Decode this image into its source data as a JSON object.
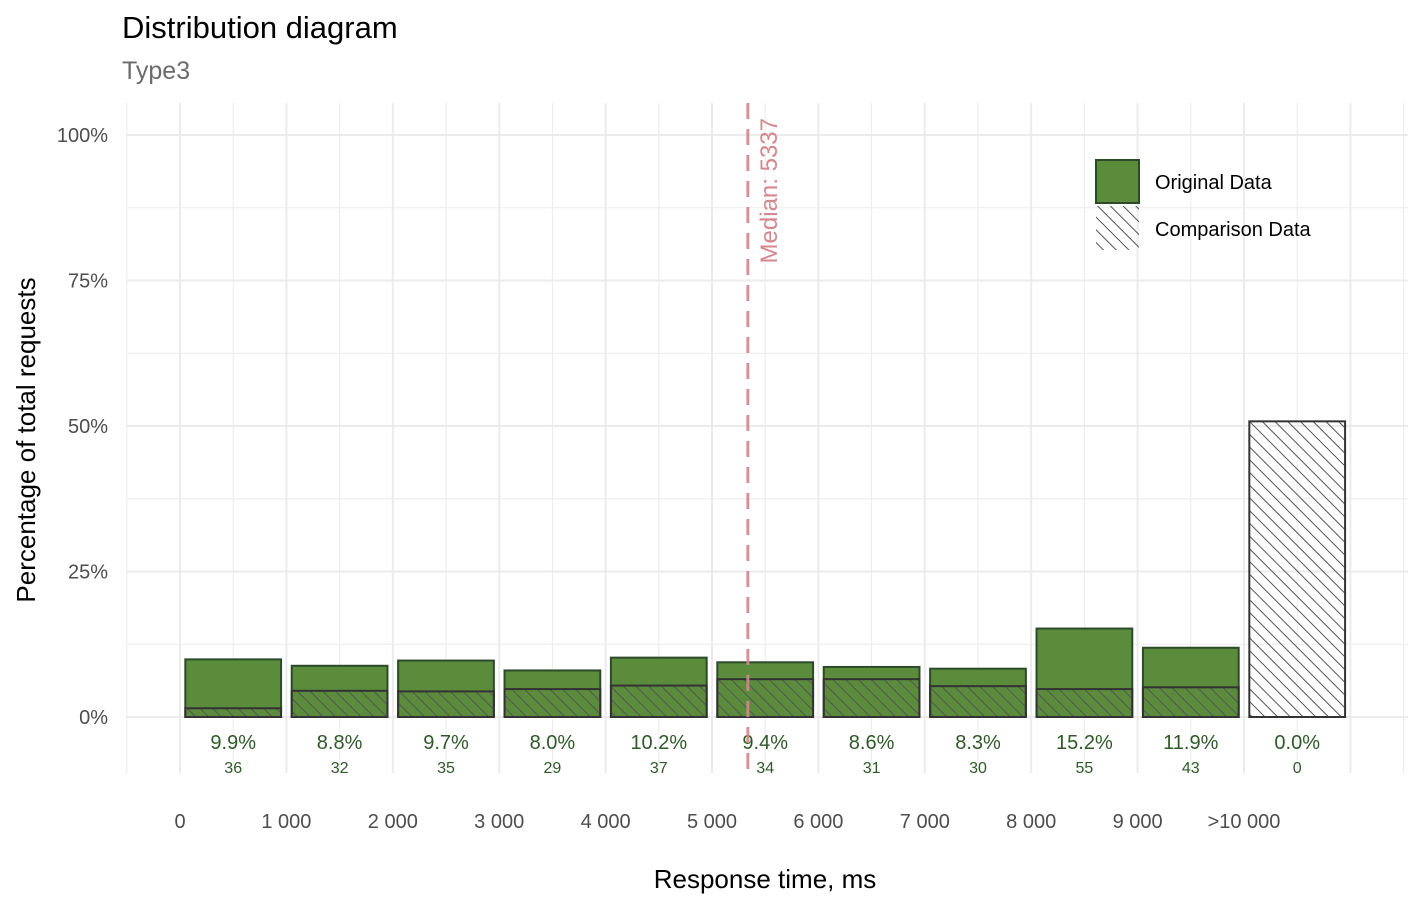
{
  "chart_data": {
    "type": "bar",
    "title": "Distribution diagram",
    "subtitle": "Type3",
    "xlabel": "Response time, ms",
    "ylabel": "Percentage of total requests",
    "ylim": [
      0,
      100
    ],
    "y_ticks": [
      "0%",
      "25%",
      "50%",
      "75%",
      "100%"
    ],
    "y_tick_values": [
      0,
      25,
      50,
      75,
      100
    ],
    "x_tick_labels": [
      "0",
      "1 000",
      "2 000",
      "3 000",
      "4 000",
      "5 000",
      "6 000",
      "7 000",
      "8 000",
      "9 000",
      ">10 000"
    ],
    "bins": [
      {
        "original": 9.9,
        "comparison": 1.5,
        "pct_label": "9.9%",
        "count": "36"
      },
      {
        "original": 8.8,
        "comparison": 4.5,
        "pct_label": "8.8%",
        "count": "32"
      },
      {
        "original": 9.7,
        "comparison": 4.4,
        "pct_label": "9.7%",
        "count": "35"
      },
      {
        "original": 8.0,
        "comparison": 4.8,
        "pct_label": "8.0%",
        "count": "29"
      },
      {
        "original": 10.2,
        "comparison": 5.4,
        "pct_label": "10.2%",
        "count": "37"
      },
      {
        "original": 9.4,
        "comparison": 6.5,
        "pct_label": "9.4%",
        "count": "34"
      },
      {
        "original": 8.6,
        "comparison": 6.5,
        "pct_label": "8.6%",
        "count": "31"
      },
      {
        "original": 8.3,
        "comparison": 5.3,
        "pct_label": "8.3%",
        "count": "30"
      },
      {
        "original": 15.2,
        "comparison": 4.8,
        "pct_label": "15.2%",
        "count": "55"
      },
      {
        "original": 11.9,
        "comparison": 5.1,
        "pct_label": "11.9%",
        "count": "43"
      },
      {
        "original": 0.0,
        "comparison": 50.8,
        "pct_label": "0.0%",
        "count": "0"
      }
    ],
    "median": {
      "value": 5337,
      "label": "Median: 5337"
    },
    "series": [
      {
        "name": "Original Data"
      },
      {
        "name": "Comparison Data"
      }
    ],
    "legend_position": "top-right",
    "grid": true,
    "colors": {
      "original_fill": "#5a8c3c",
      "original_stroke": "#2d4a2a",
      "comparison_stroke": "#333333",
      "hatch": "#555555",
      "median": "#d4878c",
      "label": "#2d5a27",
      "grid": "#ebebeb"
    }
  }
}
